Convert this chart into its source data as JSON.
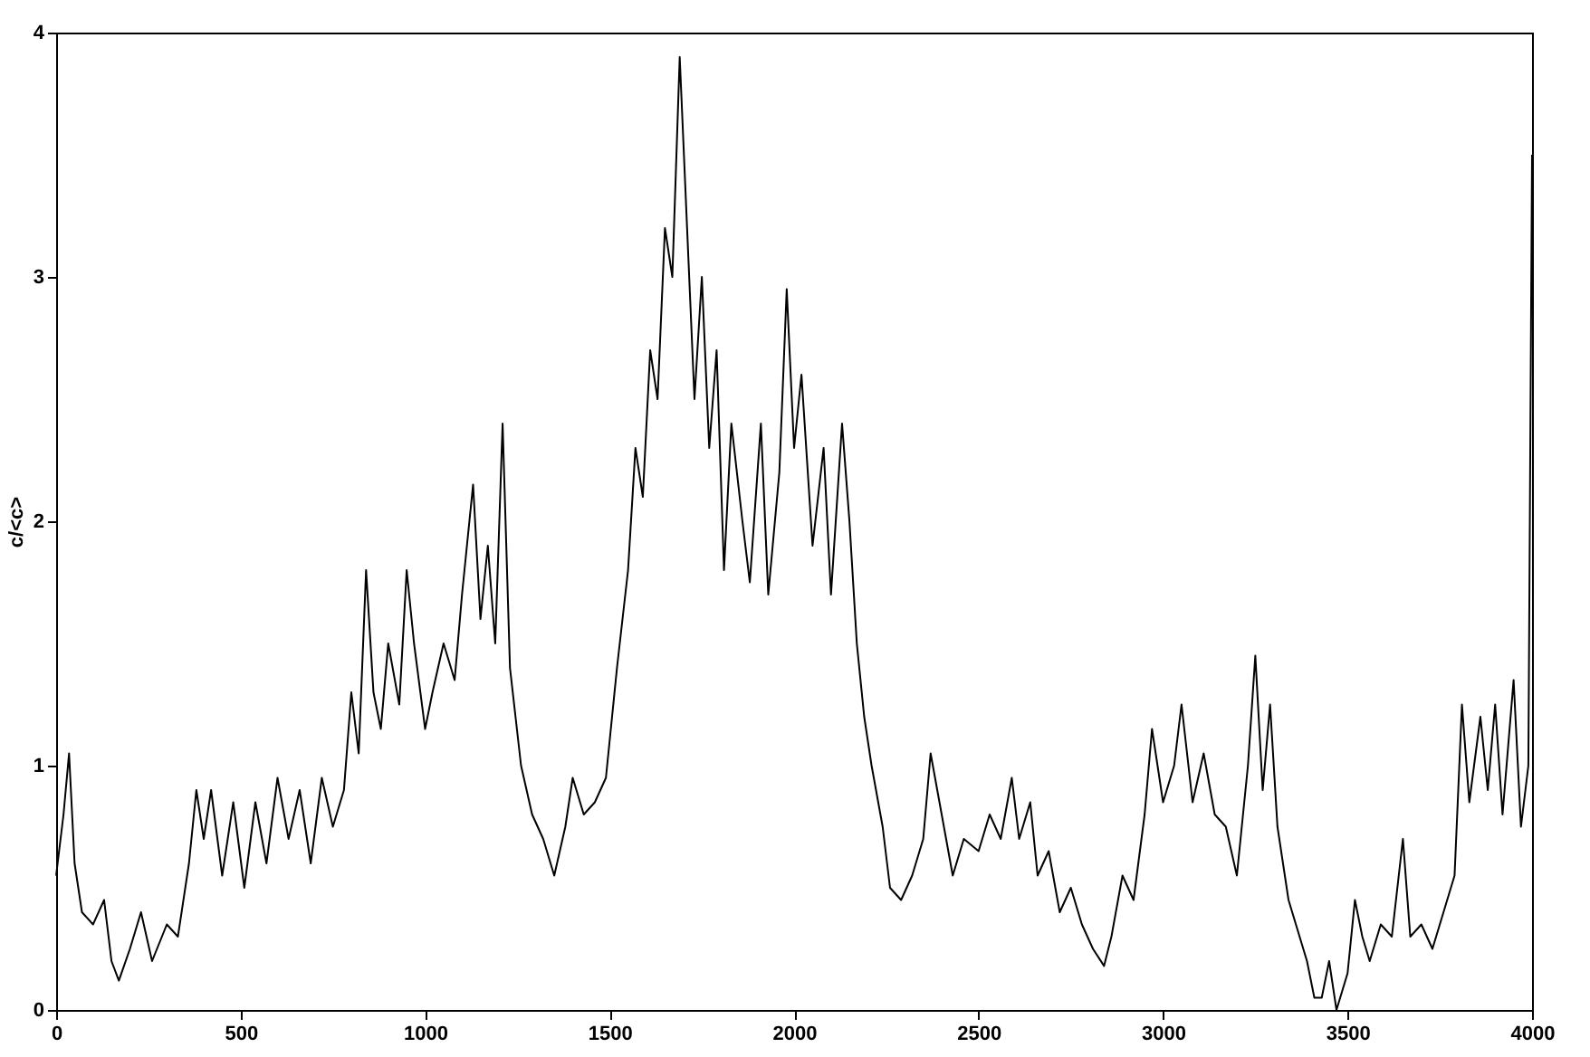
{
  "chart_data": {
    "type": "line",
    "ylabel": "c/<c>",
    "color": "#000000",
    "grid": false,
    "xlim": [
      0,
      4000
    ],
    "ylim": [
      0,
      4
    ],
    "xticks": [
      0,
      500,
      1000,
      1500,
      2000,
      2500,
      3000,
      3500,
      4000
    ],
    "yticks": [
      0,
      1,
      2,
      3,
      4
    ],
    "x": [
      0,
      20,
      35,
      50,
      70,
      100,
      130,
      150,
      170,
      200,
      230,
      260,
      300,
      330,
      360,
      380,
      400,
      420,
      450,
      480,
      510,
      540,
      570,
      600,
      630,
      660,
      690,
      720,
      750,
      780,
      800,
      820,
      840,
      860,
      880,
      900,
      930,
      950,
      970,
      1000,
      1020,
      1050,
      1080,
      1100,
      1130,
      1150,
      1170,
      1190,
      1210,
      1230,
      1260,
      1290,
      1320,
      1350,
      1380,
      1400,
      1430,
      1460,
      1490,
      1520,
      1550,
      1570,
      1590,
      1610,
      1630,
      1650,
      1670,
      1690,
      1710,
      1730,
      1750,
      1770,
      1790,
      1810,
      1830,
      1860,
      1880,
      1910,
      1930,
      1960,
      1980,
      2000,
      2020,
      2050,
      2080,
      2100,
      2130,
      2150,
      2170,
      2190,
      2210,
      2240,
      2260,
      2290,
      2320,
      2350,
      2370,
      2400,
      2430,
      2460,
      2500,
      2530,
      2560,
      2590,
      2610,
      2640,
      2660,
      2690,
      2720,
      2750,
      2780,
      2810,
      2840,
      2860,
      2890,
      2920,
      2950,
      2970,
      3000,
      3030,
      3050,
      3080,
      3110,
      3140,
      3170,
      3200,
      3230,
      3250,
      3270,
      3290,
      3310,
      3340,
      3360,
      3390,
      3410,
      3430,
      3450,
      3470,
      3500,
      3520,
      3540,
      3560,
      3590,
      3620,
      3650,
      3670,
      3700,
      3730,
      3760,
      3790,
      3810,
      3830,
      3860,
      3880,
      3900,
      3920,
      3950,
      3970,
      3990,
      4000
    ],
    "values": [
      0.55,
      0.8,
      1.05,
      0.6,
      0.4,
      0.35,
      0.45,
      0.2,
      0.12,
      0.25,
      0.4,
      0.2,
      0.35,
      0.3,
      0.6,
      0.9,
      0.7,
      0.9,
      0.55,
      0.85,
      0.5,
      0.85,
      0.6,
      0.95,
      0.7,
      0.9,
      0.6,
      0.95,
      0.75,
      0.9,
      1.3,
      1.05,
      1.8,
      1.3,
      1.15,
      1.5,
      1.25,
      1.8,
      1.5,
      1.15,
      1.3,
      1.5,
      1.35,
      1.7,
      2.15,
      1.6,
      1.9,
      1.5,
      2.4,
      1.4,
      1.0,
      0.8,
      0.7,
      0.55,
      0.75,
      0.95,
      0.8,
      0.85,
      0.95,
      1.4,
      1.8,
      2.3,
      2.1,
      2.7,
      2.5,
      3.2,
      3.0,
      3.9,
      3.2,
      2.5,
      3.0,
      2.3,
      2.7,
      1.8,
      2.4,
      2.0,
      1.75,
      2.4,
      1.7,
      2.2,
      2.95,
      2.3,
      2.6,
      1.9,
      2.3,
      1.7,
      2.4,
      2.0,
      1.5,
      1.2,
      1.0,
      0.75,
      0.5,
      0.45,
      0.55,
      0.7,
      1.05,
      0.8,
      0.55,
      0.7,
      0.65,
      0.8,
      0.7,
      0.95,
      0.7,
      0.85,
      0.55,
      0.65,
      0.4,
      0.5,
      0.35,
      0.25,
      0.18,
      0.3,
      0.55,
      0.45,
      0.8,
      1.15,
      0.85,
      1.0,
      1.25,
      0.85,
      1.05,
      0.8,
      0.75,
      0.55,
      1.0,
      1.45,
      0.9,
      1.25,
      0.75,
      0.45,
      0.35,
      0.2,
      0.05,
      0.05,
      0.2,
      0.0,
      0.15,
      0.45,
      0.3,
      0.2,
      0.35,
      0.3,
      0.7,
      0.3,
      0.35,
      0.25,
      0.4,
      0.55,
      1.25,
      0.85,
      1.2,
      0.9,
      1.25,
      0.8,
      1.35,
      0.75,
      1.0,
      3.5
    ]
  }
}
